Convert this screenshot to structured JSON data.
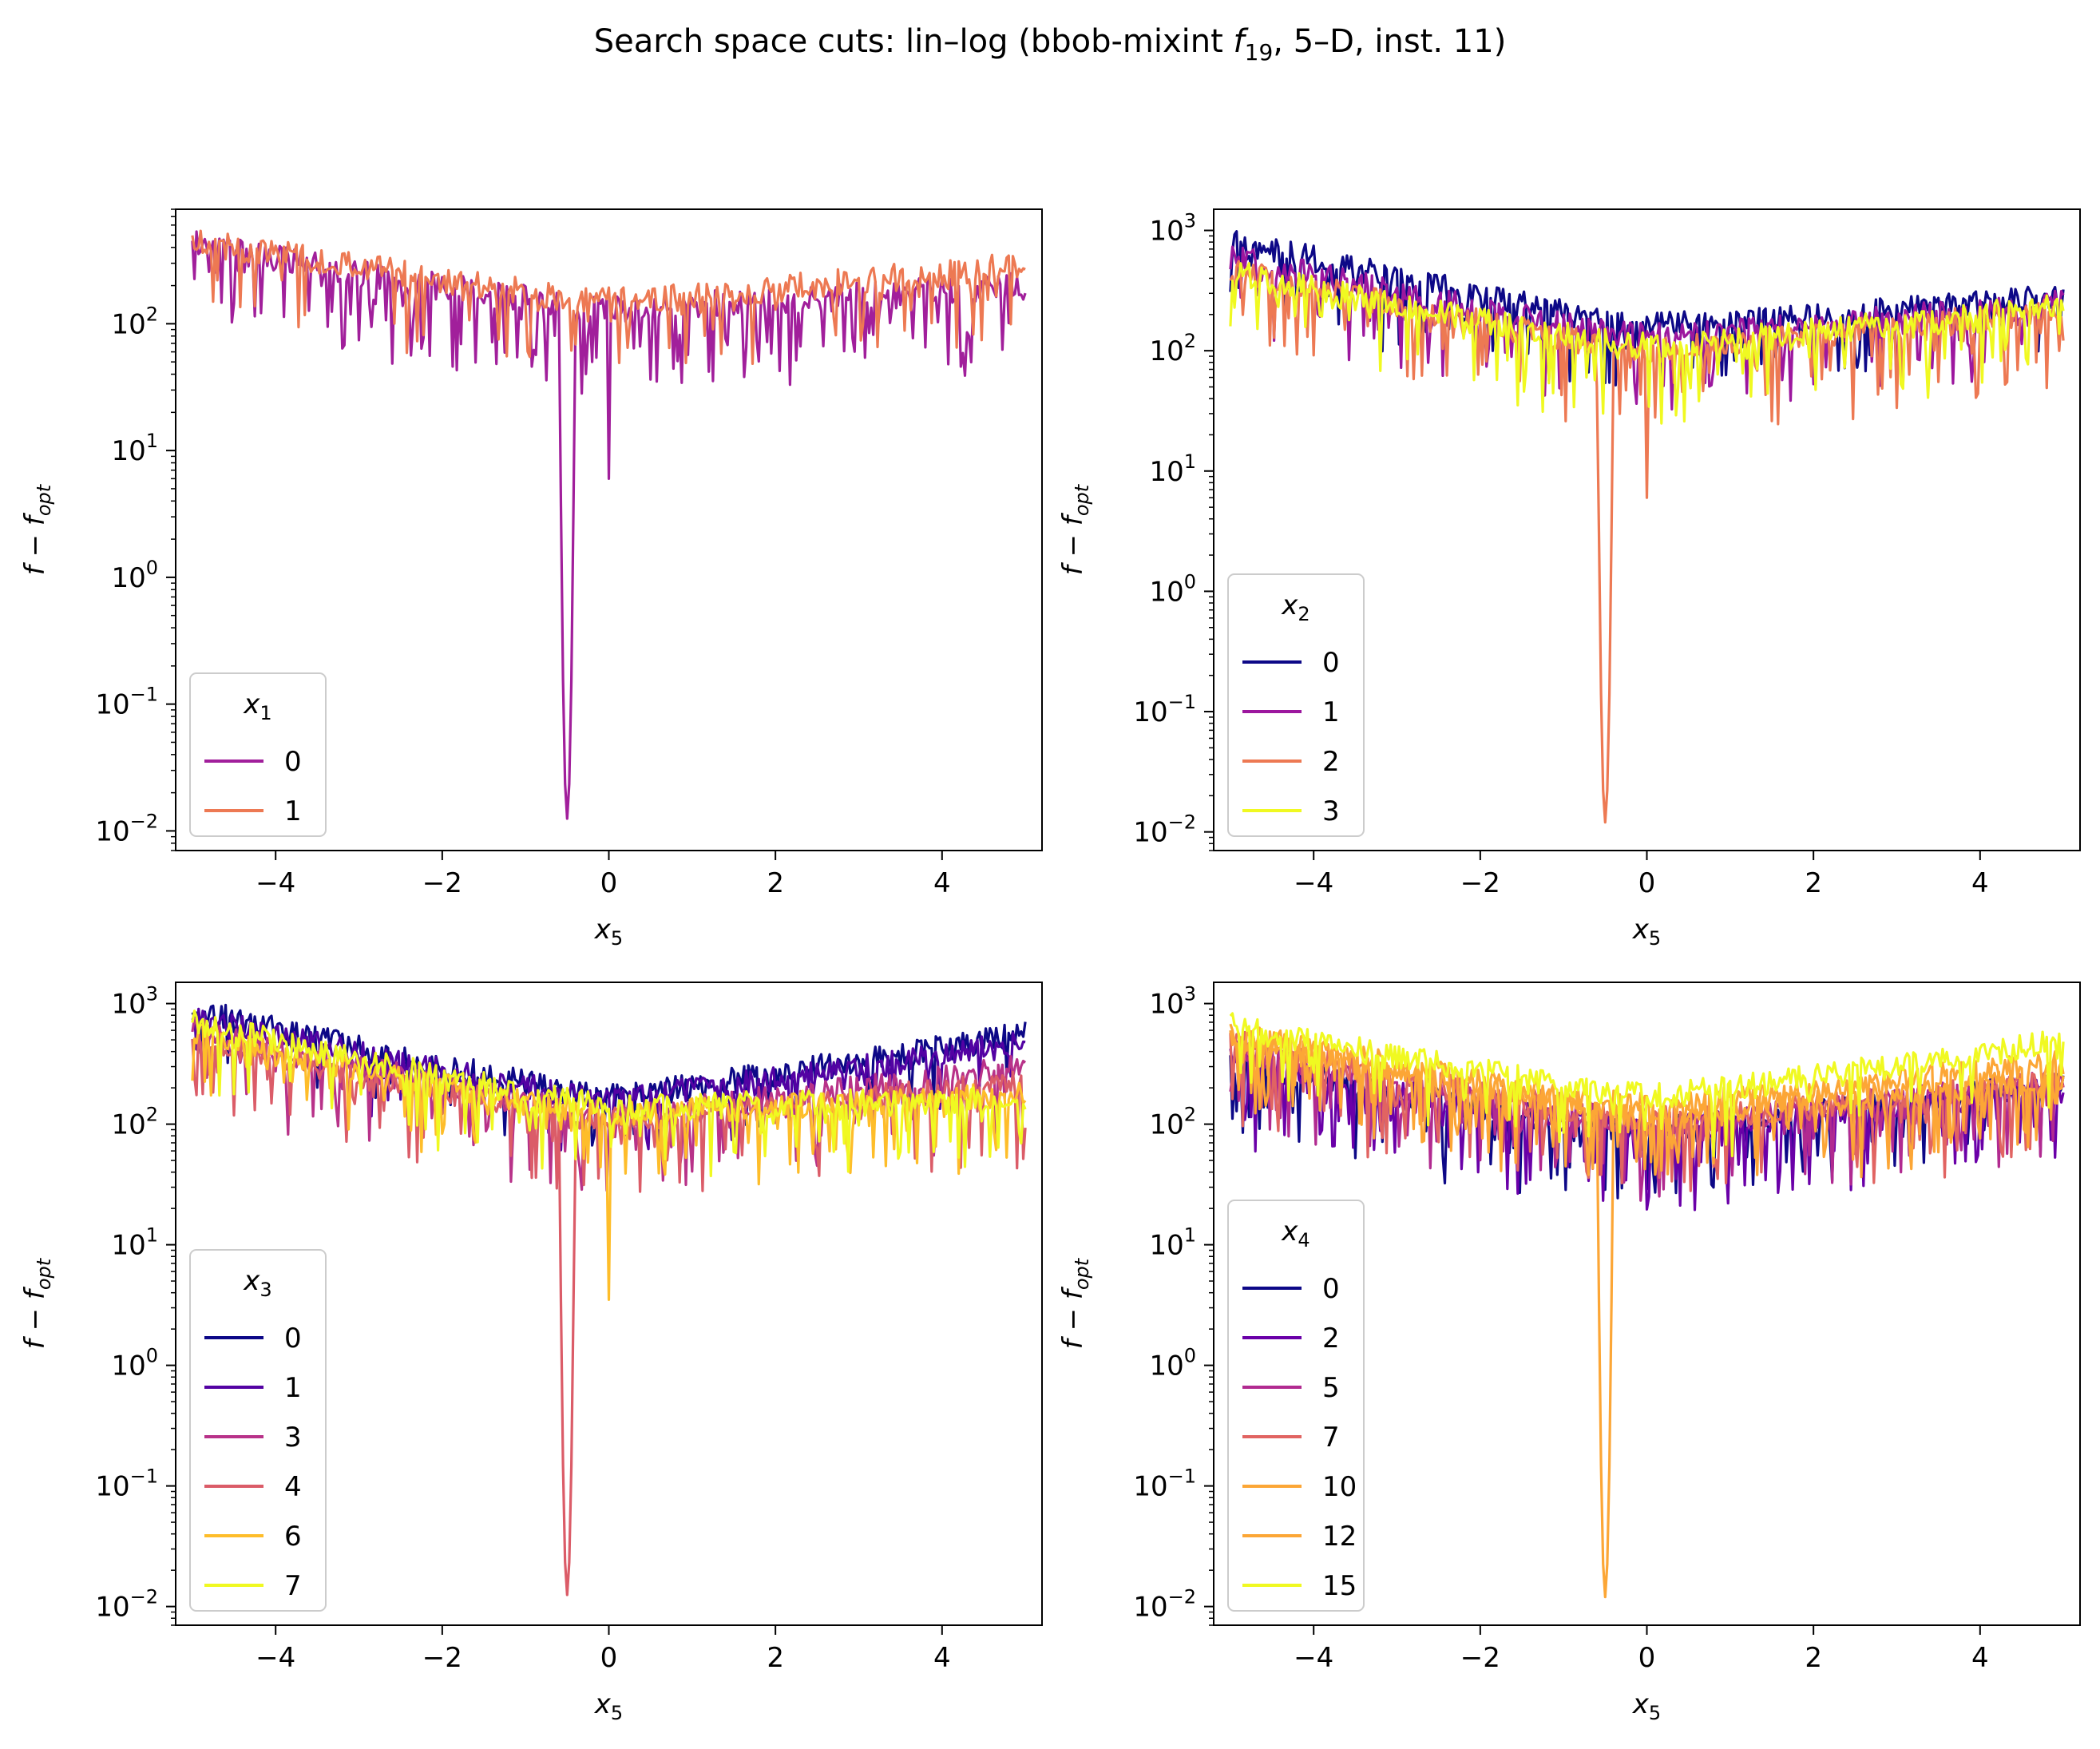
{
  "title_main": "Search space cuts: lin–log (bbob-mixint ",
  "title_f": "f",
  "title_sub": "19",
  "title_tail": ", 5–D, inst. 11)",
  "chart_data": [
    {
      "type": "line",
      "xlabel_var": "x",
      "xlabel_sub": "5",
      "ylabel": "f − f",
      "ylabel_sub": "opt",
      "xlim": [
        -5.2,
        5.2
      ],
      "ylim": [
        0.007,
        800
      ],
      "yscale": "log",
      "xticks": [
        -4,
        -2,
        0,
        2,
        4
      ],
      "xtick_labels": [
        "−4",
        "−2",
        "0",
        "2",
        "4"
      ],
      "yticks": [
        0.01,
        0.1,
        1,
        10,
        100
      ],
      "ytick_exps": [
        "−2",
        "−1",
        "0",
        "1",
        "2"
      ],
      "legend": {
        "title_var": "x",
        "title_sub": "1",
        "placement": "lower left"
      },
      "series": [
        {
          "name": "0",
          "color": "#a11f9b",
          "profile": {
            "left": 420,
            "center": 130,
            "right": 200,
            "noise": 0.55,
            "dip_x": -0.5,
            "dip_min": 0.0125,
            "spike": [
              0.0,
              6
            ]
          }
        },
        {
          "name": "1",
          "color": "#ed7953",
          "profile": {
            "left": 460,
            "center": 150,
            "right": 290,
            "noise": 0.3
          }
        }
      ]
    },
    {
      "type": "line",
      "xlabel_var": "x",
      "xlabel_sub": "5",
      "ylabel": "f − f",
      "ylabel_sub": "opt",
      "xlim": [
        -5.2,
        5.2
      ],
      "ylim": [
        0.007,
        1500
      ],
      "yscale": "log",
      "xticks": [
        -4,
        -2,
        0,
        2,
        4
      ],
      "xtick_labels": [
        "−4",
        "−2",
        "0",
        "2",
        "4"
      ],
      "yticks": [
        0.01,
        0.1,
        1,
        10,
        100,
        1000
      ],
      "ytick_exps": [
        "−2",
        "−1",
        "0",
        "1",
        "2",
        "3"
      ],
      "legend": {
        "title_var": "x",
        "title_sub": "2",
        "placement": "lower left"
      },
      "series": [
        {
          "name": "0",
          "color": "#0d0887",
          "profile": {
            "left": 850,
            "center": 160,
            "right": 280,
            "noise": 0.4
          }
        },
        {
          "name": "1",
          "color": "#9c179e",
          "profile": {
            "left": 600,
            "center": 130,
            "right": 250,
            "noise": 0.45
          }
        },
        {
          "name": "2",
          "color": "#ed7953",
          "profile": {
            "left": 480,
            "center": 100,
            "right": 230,
            "noise": 0.5,
            "dip_x": -0.5,
            "dip_min": 0.012,
            "spike": [
              0.0,
              6
            ]
          }
        },
        {
          "name": "3",
          "color": "#f0f921",
          "profile": {
            "left": 450,
            "center": 110,
            "right": 240,
            "noise": 0.45
          }
        }
      ]
    },
    {
      "type": "line",
      "xlabel_var": "x",
      "xlabel_sub": "5",
      "ylabel": "f − f",
      "ylabel_sub": "opt",
      "xlim": [
        -5.2,
        5.2
      ],
      "ylim": [
        0.007,
        1500
      ],
      "yscale": "log",
      "xticks": [
        -4,
        -2,
        0,
        2,
        4
      ],
      "xtick_labels": [
        "−4",
        "−2",
        "0",
        "2",
        "4"
      ],
      "yticks": [
        0.01,
        0.1,
        1,
        10,
        100,
        1000
      ],
      "ytick_exps": [
        "−2",
        "−1",
        "0",
        "1",
        "2",
        "3"
      ],
      "legend": {
        "title_var": "x",
        "title_sub": "3",
        "placement": "lower left"
      },
      "series": [
        {
          "name": "0",
          "color": "#0d0887",
          "profile": {
            "left": 880,
            "center": 170,
            "right": 560,
            "noise": 0.15
          }
        },
        {
          "name": "1",
          "color": "#5302a3",
          "profile": {
            "left": 760,
            "center": 160,
            "right": 480,
            "noise": 0.2
          }
        },
        {
          "name": "3",
          "color": "#b83289",
          "profile": {
            "left": 600,
            "center": 120,
            "right": 300,
            "noise": 0.45
          }
        },
        {
          "name": "4",
          "color": "#db5c68",
          "profile": {
            "left": 520,
            "center": 110,
            "right": 220,
            "noise": 0.5,
            "dip_x": -0.5,
            "dip_min": 0.0125
          }
        },
        {
          "name": "6",
          "color": "#febd2a",
          "profile": {
            "left": 560,
            "center": 120,
            "right": 180,
            "noise": 0.45,
            "spike": [
              0.0,
              3.5
            ]
          }
        },
        {
          "name": "7",
          "color": "#f0f921",
          "profile": {
            "left": 700,
            "center": 140,
            "right": 160,
            "noise": 0.35
          }
        }
      ]
    },
    {
      "type": "line",
      "xlabel_var": "x",
      "xlabel_sub": "5",
      "ylabel": "f − f",
      "ylabel_sub": "opt",
      "xlim": [
        -5.2,
        5.2
      ],
      "ylim": [
        0.007,
        1500
      ],
      "yscale": "log",
      "xticks": [
        -4,
        -2,
        0,
        2,
        4
      ],
      "xtick_labels": [
        "−4",
        "−2",
        "0",
        "2",
        "4"
      ],
      "yticks": [
        0.01,
        0.1,
        1,
        10,
        100,
        1000
      ],
      "ytick_exps": [
        "−2",
        "−1",
        "0",
        "1",
        "2",
        "3"
      ],
      "legend": {
        "title_var": "x",
        "title_sub": "4",
        "placement": "lower left"
      },
      "series": [
        {
          "name": "0",
          "color": "#0d0887",
          "profile": {
            "left": 320,
            "center": 90,
            "right": 220,
            "noise": 0.45
          }
        },
        {
          "name": "2",
          "color": "#6a00a8",
          "profile": {
            "left": 360,
            "center": 90,
            "right": 200,
            "noise": 0.5
          }
        },
        {
          "name": "5",
          "color": "#b12a90",
          "profile": {
            "left": 420,
            "center": 100,
            "right": 230,
            "noise": 0.5
          }
        },
        {
          "name": "7",
          "color": "#e16462",
          "profile": {
            "left": 480,
            "center": 110,
            "right": 220,
            "noise": 0.5
          }
        },
        {
          "name": "10",
          "color": "#fca636",
          "profile": {
            "left": 500,
            "center": 120,
            "right": 240,
            "noise": 0.45,
            "dip_x": -0.5,
            "dip_min": 0.012
          }
        },
        {
          "name": "12",
          "color": "#fca636",
          "profile": {
            "left": 560,
            "center": 140,
            "right": 330,
            "noise": 0.35
          }
        },
        {
          "name": "15",
          "color": "#f0f921",
          "profile": {
            "left": 650,
            "center": 170,
            "right": 480,
            "noise": 0.25
          }
        }
      ]
    }
  ]
}
